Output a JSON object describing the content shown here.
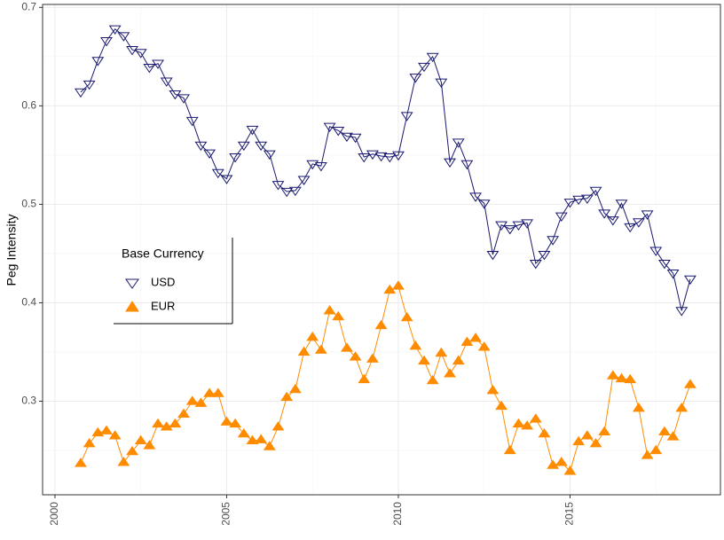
{
  "chart_data": {
    "type": "line",
    "y_label": "Peg Intensity",
    "x": [
      2000.75,
      2001,
      2001.25,
      2001.5,
      2001.75,
      2002,
      2002.25,
      2002.5,
      2002.75,
      2003,
      2003.25,
      2003.5,
      2003.75,
      2004,
      2004.25,
      2004.5,
      2004.75,
      2005,
      2005.25,
      2005.5,
      2005.75,
      2006,
      2006.25,
      2006.5,
      2006.75,
      2007,
      2007.25,
      2007.5,
      2007.75,
      2008,
      2008.25,
      2008.5,
      2008.75,
      2009,
      2009.25,
      2009.5,
      2009.75,
      2010,
      2010.25,
      2010.5,
      2010.75,
      2011,
      2011.25,
      2011.5,
      2011.75,
      2012,
      2012.25,
      2012.5,
      2012.75,
      2013,
      2013.25,
      2013.5,
      2013.75,
      2014,
      2014.25,
      2014.5,
      2014.75,
      2015,
      2015.25,
      2015.5,
      2015.75,
      2016,
      2016.25,
      2016.5,
      2016.75,
      2017,
      2017.25,
      2017.5,
      2017.75,
      2018,
      2018.25,
      2018.5
    ],
    "series": [
      {
        "name": "USD",
        "color": "#191970",
        "marker": "triangle-down-open",
        "values": [
          0.614,
          0.622,
          0.646,
          0.666,
          0.678,
          0.671,
          0.657,
          0.654,
          0.639,
          0.643,
          0.625,
          0.612,
          0.608,
          0.585,
          0.56,
          0.552,
          0.532,
          0.526,
          0.548,
          0.56,
          0.576,
          0.56,
          0.551,
          0.52,
          0.513,
          0.514,
          0.525,
          0.541,
          0.539,
          0.579,
          0.575,
          0.569,
          0.568,
          0.548,
          0.551,
          0.549,
          0.548,
          0.55,
          0.59,
          0.629,
          0.64,
          0.65,
          0.624,
          0.543,
          0.563,
          0.541,
          0.508,
          0.501,
          0.449,
          0.479,
          0.475,
          0.479,
          0.481,
          0.44,
          0.449,
          0.464,
          0.488,
          0.502,
          0.505,
          0.506,
          0.514,
          0.491,
          0.484,
          0.501,
          0.477,
          0.482,
          0.49,
          0.453,
          0.44,
          0.43,
          0.392,
          0.424
        ]
      },
      {
        "name": "EUR",
        "color": "#ff8c00",
        "marker": "triangle-up-filled",
        "values": [
          0.237,
          0.257,
          0.268,
          0.27,
          0.265,
          0.238,
          0.249,
          0.26,
          0.255,
          0.277,
          0.274,
          0.277,
          0.287,
          0.3,
          0.298,
          0.308,
          0.308,
          0.279,
          0.277,
          0.267,
          0.26,
          0.261,
          0.254,
          0.274,
          0.304,
          0.312,
          0.35,
          0.365,
          0.352,
          0.392,
          0.386,
          0.354,
          0.345,
          0.322,
          0.343,
          0.377,
          0.413,
          0.417,
          0.385,
          0.356,
          0.341,
          0.321,
          0.349,
          0.328,
          0.341,
          0.36,
          0.364,
          0.355,
          0.311,
          0.295,
          0.25,
          0.277,
          0.275,
          0.282,
          0.267,
          0.235,
          0.238,
          0.229,
          0.259,
          0.265,
          0.257,
          0.269,
          0.326,
          0.323,
          0.322,
          0.293,
          0.245,
          0.25,
          0.269,
          0.264,
          0.293,
          0.317
        ]
      }
    ],
    "legend_title": "Base Currency",
    "legend": "left",
    "xlim": [
      1999.64,
      2019.38
    ],
    "xticks": [
      2000,
      2005,
      2010,
      2015
    ],
    "ylim": [
      0.205,
      0.703
    ],
    "yticks": [
      0.3,
      0.4,
      0.5,
      0.6,
      0.7
    ],
    "grid": true
  }
}
